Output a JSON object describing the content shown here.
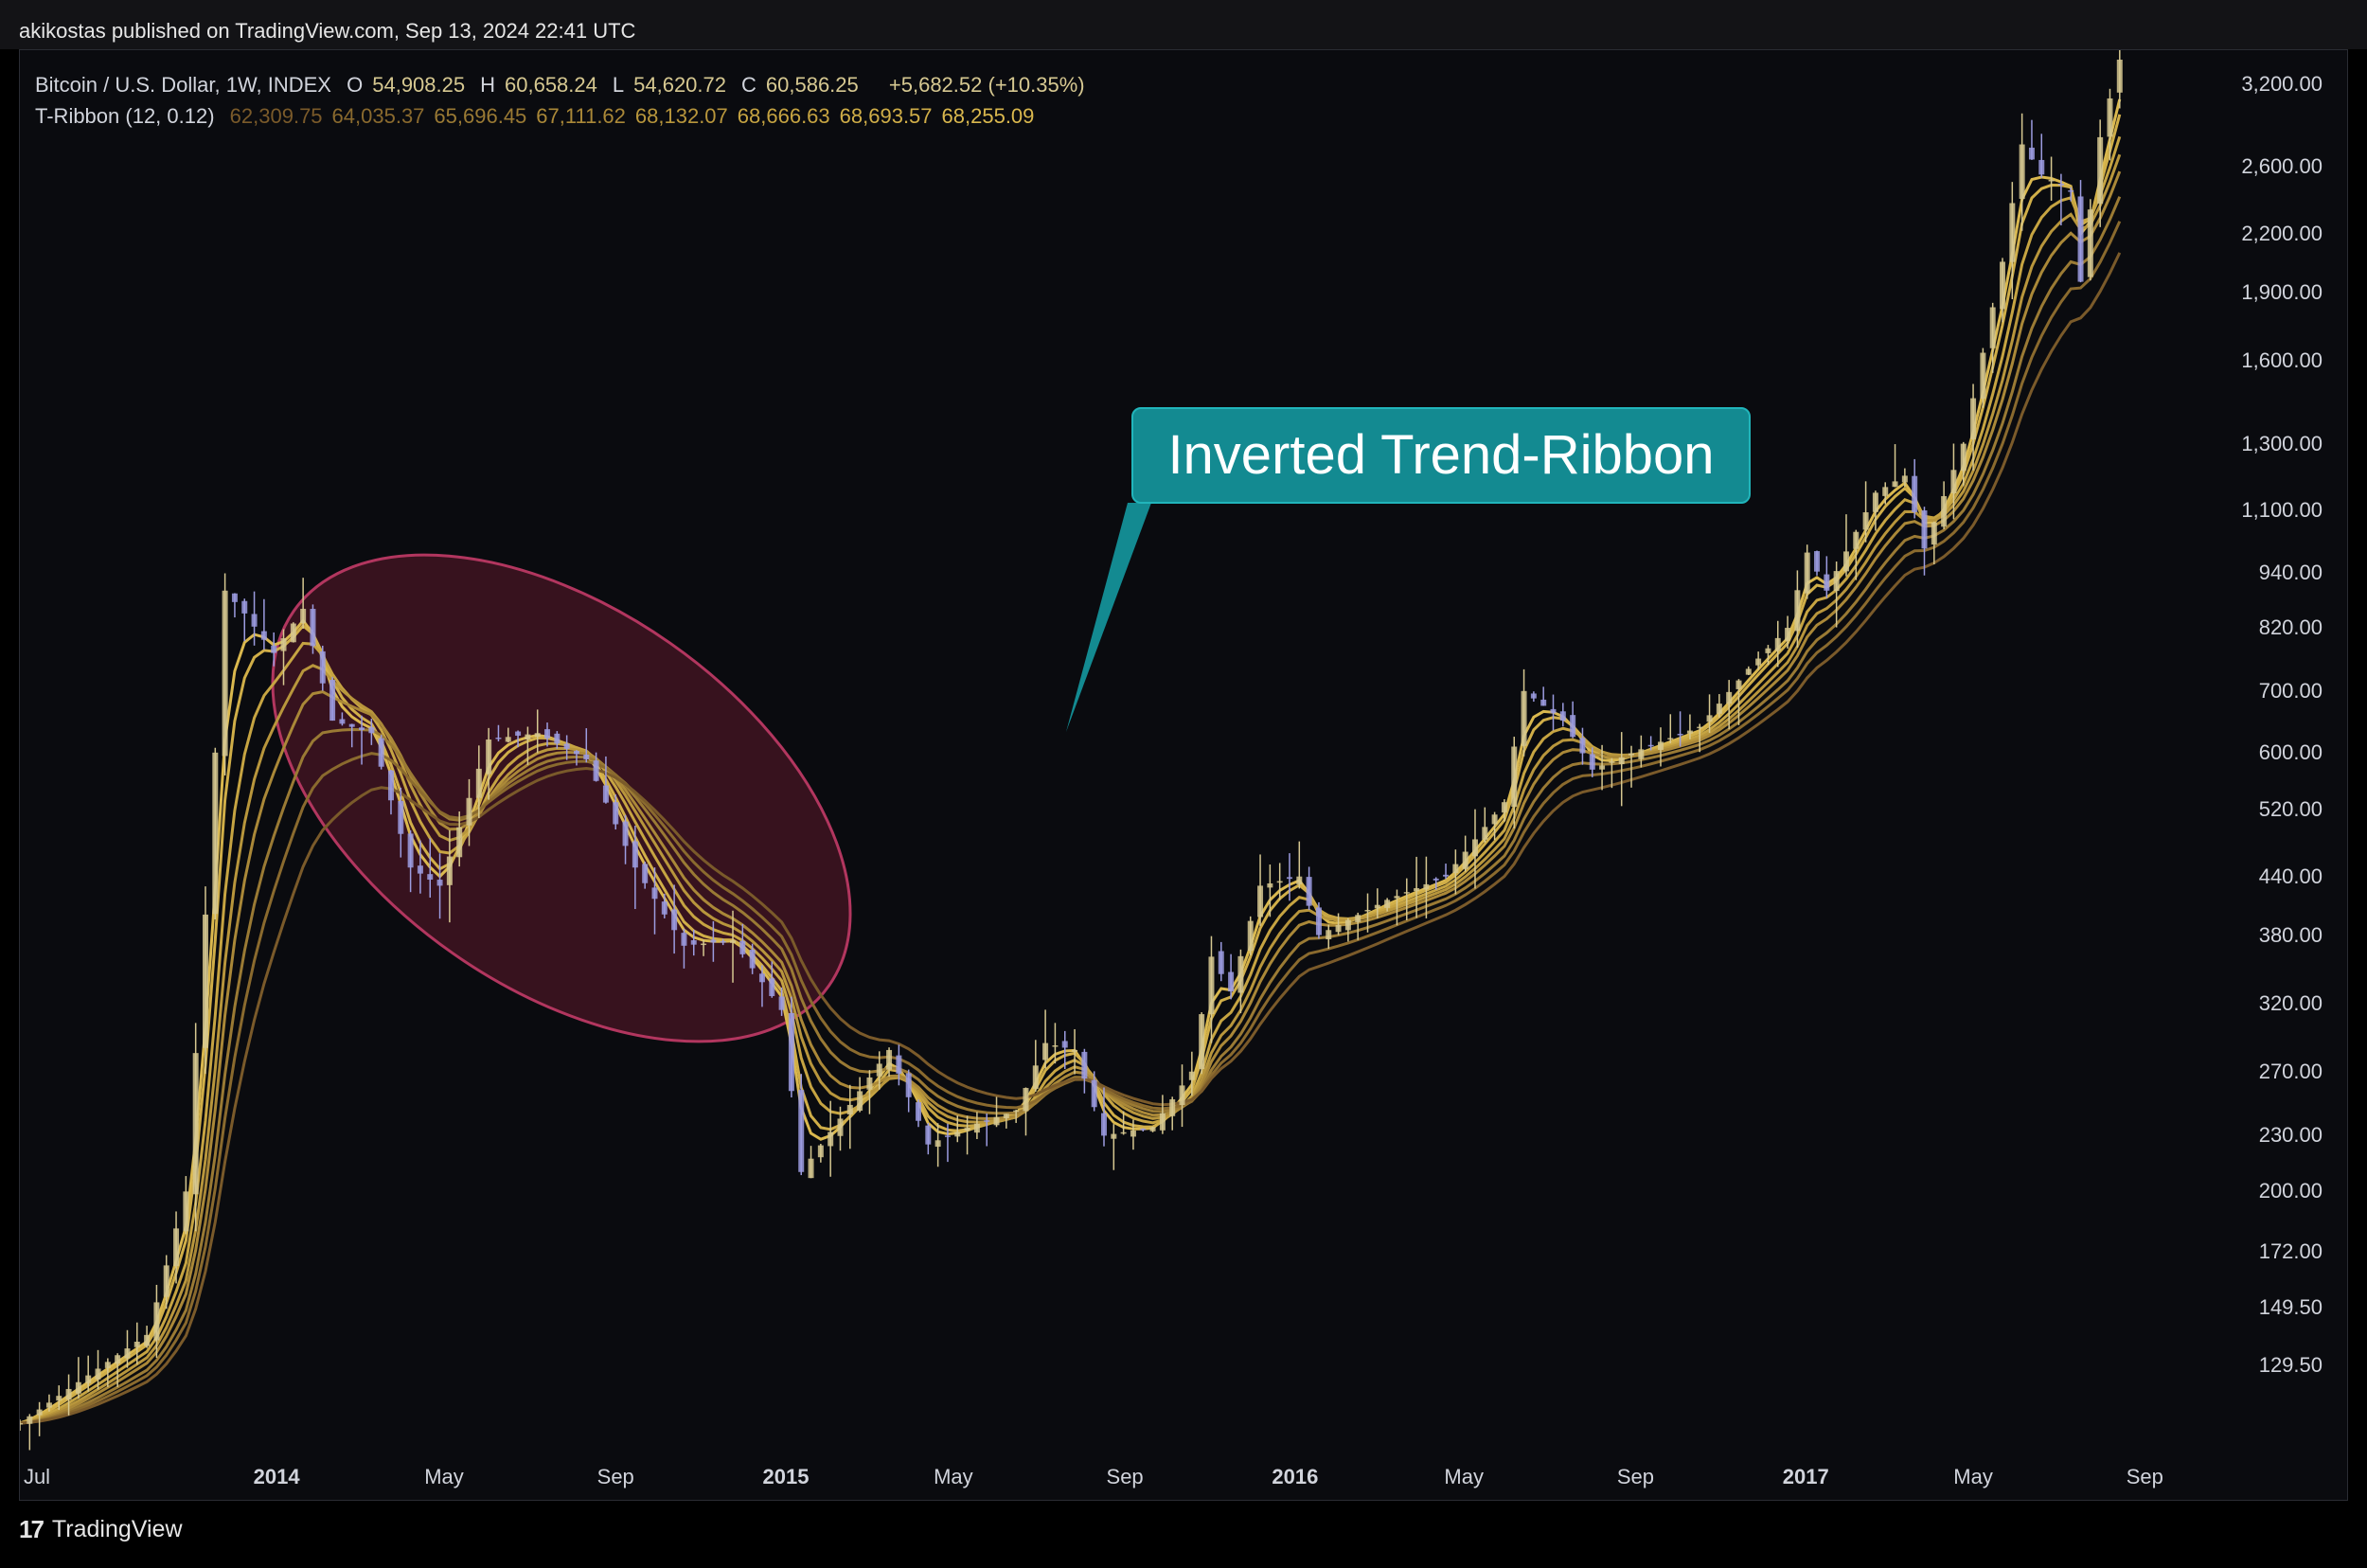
{
  "header": {
    "published_text": "akikostas published on TradingView.com, Sep 13, 2024 22:41 UTC"
  },
  "legend": {
    "symbol": "Bitcoin / U.S. Dollar, 1W, INDEX",
    "ohlc": [
      {
        "k": "O",
        "v": "54,908.25"
      },
      {
        "k": "H",
        "v": "60,658.24"
      },
      {
        "k": "L",
        "v": "54,620.72"
      },
      {
        "k": "C",
        "v": "60,586.25"
      }
    ],
    "change": "+5,682.52 (+10.35%)",
    "indicator": "T-Ribbon (12, 0.12)",
    "indicator_values": [
      "62,309.75",
      "64,035.37",
      "65,696.45",
      "67,111.62",
      "68,132.07",
      "68,666.63",
      "68,693.57",
      "68,255.09"
    ]
  },
  "colors": {
    "background": "#0a0b0f",
    "candle_up": "#d6c891",
    "candle_down": "#9c9ce0",
    "ribbon": [
      "#7a5a2a",
      "#8a6a2e",
      "#9a7a34",
      "#aa8838",
      "#b8963c",
      "#c6a442",
      "#d0ae48",
      "#dab84e"
    ],
    "ellipse_fill": "rgba(150,32,60,0.33)",
    "ellipse_stroke": "#b2365f",
    "callout_bg": "#138a91"
  },
  "chart_data": {
    "type": "candlestick",
    "title": "Bitcoin / U.S. Dollar, 1W, INDEX",
    "y_scale": "log",
    "ylim": [
      112,
      3400
    ],
    "y_ticks": [
      "3,200.00",
      "2,600.00",
      "2,200.00",
      "1,900.00",
      "1,600.00",
      "1,300.00",
      "1,100.00",
      "940.00",
      "820.00",
      "700.00",
      "600.00",
      "520.00",
      "440.00",
      "380.00",
      "320.00",
      "270.00",
      "230.00",
      "200.00",
      "172.00",
      "149.50",
      "129.50"
    ],
    "x_ticks": [
      {
        "label": "Jul",
        "bold": false
      },
      {
        "label": "2014",
        "bold": true
      },
      {
        "label": "May",
        "bold": false
      },
      {
        "label": "Sep",
        "bold": false
      },
      {
        "label": "2015",
        "bold": true
      },
      {
        "label": "May",
        "bold": false
      },
      {
        "label": "Sep",
        "bold": false
      },
      {
        "label": "2016",
        "bold": true
      },
      {
        "label": "May",
        "bold": false
      },
      {
        "label": "Sep",
        "bold": false
      },
      {
        "label": "2017",
        "bold": true
      },
      {
        "label": "May",
        "bold": false
      },
      {
        "label": "Sep",
        "bold": false
      }
    ],
    "price_path_anchors": [
      {
        "date": "2013-07-01",
        "price": 112
      },
      {
        "date": "2013-08-15",
        "price": 125
      },
      {
        "date": "2013-10-01",
        "price": 140
      },
      {
        "date": "2013-10-28",
        "price": 200
      },
      {
        "date": "2013-11-11",
        "price": 400
      },
      {
        "date": "2013-11-25",
        "price": 900
      },
      {
        "date": "2013-12-09",
        "price": 850
      },
      {
        "date": "2013-12-30",
        "price": 770
      },
      {
        "date": "2014-01-20",
        "price": 860
      },
      {
        "date": "2014-02-10",
        "price": 650
      },
      {
        "date": "2014-03-10",
        "price": 630
      },
      {
        "date": "2014-04-07",
        "price": 450
      },
      {
        "date": "2014-04-28",
        "price": 430
      },
      {
        "date": "2014-06-02",
        "price": 620
      },
      {
        "date": "2014-07-07",
        "price": 630
      },
      {
        "date": "2014-08-11",
        "price": 590
      },
      {
        "date": "2014-09-15",
        "price": 450
      },
      {
        "date": "2014-10-20",
        "price": 370
      },
      {
        "date": "2014-11-24",
        "price": 375
      },
      {
        "date": "2014-12-29",
        "price": 315
      },
      {
        "date": "2015-01-12",
        "price": 210
      },
      {
        "date": "2015-02-09",
        "price": 240
      },
      {
        "date": "2015-03-16",
        "price": 285
      },
      {
        "date": "2015-04-13",
        "price": 225
      },
      {
        "date": "2015-05-18",
        "price": 237
      },
      {
        "date": "2015-06-15",
        "price": 245
      },
      {
        "date": "2015-07-06",
        "price": 290
      },
      {
        "date": "2015-07-27",
        "price": 285
      },
      {
        "date": "2015-08-17",
        "price": 230
      },
      {
        "date": "2015-09-21",
        "price": 235
      },
      {
        "date": "2015-10-19",
        "price": 270
      },
      {
        "date": "2015-11-02",
        "price": 360
      },
      {
        "date": "2015-11-16",
        "price": 330
      },
      {
        "date": "2015-12-07",
        "price": 430
      },
      {
        "date": "2016-01-04",
        "price": 440
      },
      {
        "date": "2016-01-18",
        "price": 380
      },
      {
        "date": "2016-03-07",
        "price": 415
      },
      {
        "date": "2016-04-18",
        "price": 440
      },
      {
        "date": "2016-05-30",
        "price": 530
      },
      {
        "date": "2016-06-13",
        "price": 700
      },
      {
        "date": "2016-07-11",
        "price": 650
      },
      {
        "date": "2016-08-01",
        "price": 575
      },
      {
        "date": "2016-09-05",
        "price": 605
      },
      {
        "date": "2016-10-17",
        "price": 640
      },
      {
        "date": "2016-11-21",
        "price": 740
      },
      {
        "date": "2016-12-19",
        "price": 820
      },
      {
        "date": "2017-01-02",
        "price": 990
      },
      {
        "date": "2017-01-16",
        "price": 900
      },
      {
        "date": "2017-02-20",
        "price": 1150
      },
      {
        "date": "2017-03-13",
        "price": 1200
      },
      {
        "date": "2017-03-27",
        "price": 1000
      },
      {
        "date": "2017-04-24",
        "price": 1300
      },
      {
        "date": "2017-05-22",
        "price": 2050
      },
      {
        "date": "2017-06-05",
        "price": 2750
      },
      {
        "date": "2017-06-19",
        "price": 2550
      },
      {
        "date": "2017-07-10",
        "price": 2450
      },
      {
        "date": "2017-07-17",
        "price": 1950
      },
      {
        "date": "2017-07-31",
        "price": 2800
      },
      {
        "date": "2017-08-14",
        "price": 3400
      }
    ],
    "series": [
      {
        "name": "T-Ribbon (12, 0.12)",
        "type": "ribbon",
        "lines": 8
      }
    ]
  },
  "annotation": {
    "callout_text": "Inverted Trend-Ribbon"
  },
  "footer": {
    "brand": "TradingView"
  }
}
